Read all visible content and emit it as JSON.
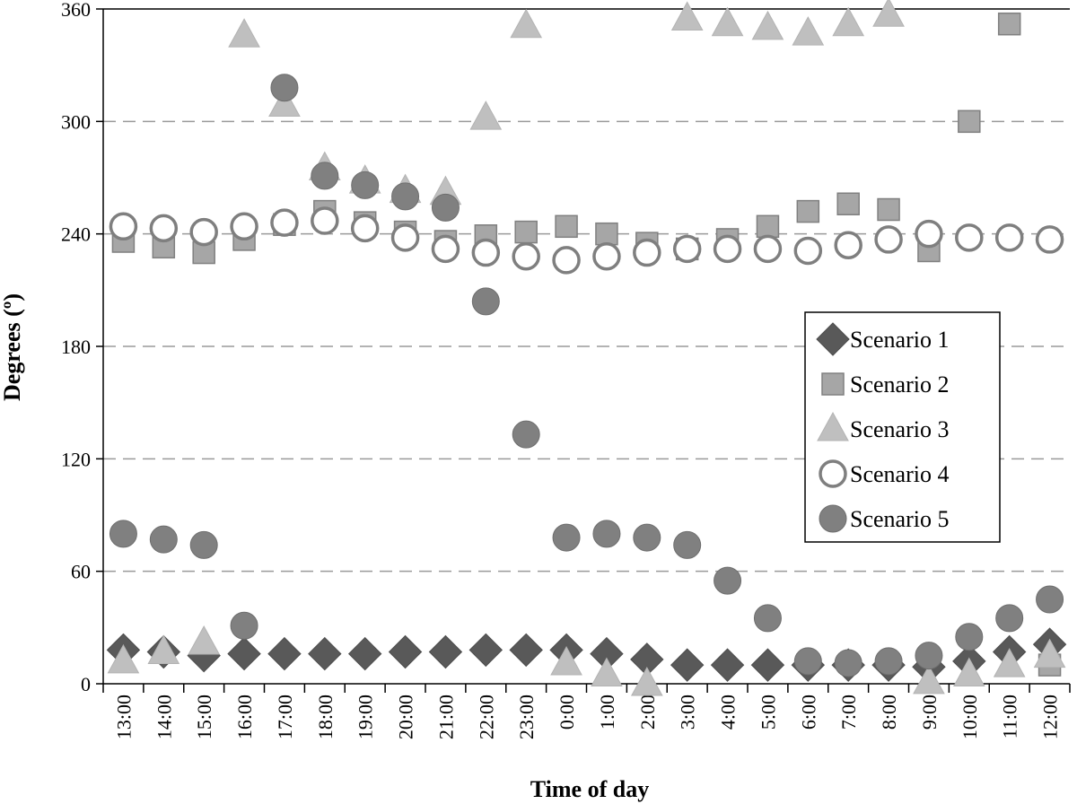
{
  "chart_data": {
    "type": "scatter",
    "title": "",
    "xlabel": "Time of day",
    "ylabel": "Degrees (º)",
    "ylim": [
      0,
      360
    ],
    "yticks": [
      0,
      60,
      120,
      180,
      240,
      300,
      360
    ],
    "grid": "horizontal dashed",
    "legend_position": "right",
    "categories": [
      "13:00",
      "14:00",
      "15:00",
      "16:00",
      "17:00",
      "18:00",
      "19:00",
      "20:00",
      "21:00",
      "22:00",
      "23:00",
      "0:00",
      "1:00",
      "2:00",
      "3:00",
      "4:00",
      "5:00",
      "6:00",
      "7:00",
      "8:00",
      "9:00",
      "10:00",
      "11:00",
      "12:00"
    ],
    "series": [
      {
        "name": "Scenario 1",
        "marker": "diamond",
        "color": "#595959",
        "values": [
          18,
          17,
          15,
          16,
          16,
          16,
          16,
          17,
          17,
          18,
          18,
          18,
          16,
          13,
          10,
          10,
          10,
          10,
          10,
          10,
          9,
          12,
          17,
          21
        ]
      },
      {
        "name": "Scenario 2",
        "marker": "square",
        "color": "#a6a6a6",
        "values": [
          236,
          233,
          230,
          237,
          245,
          252,
          246,
          241,
          236,
          239,
          241,
          244,
          240,
          235,
          232,
          237,
          244,
          252,
          256,
          253,
          231,
          300,
          352,
          10
        ]
      },
      {
        "name": "Scenario 3",
        "marker": "triangle",
        "color": "#bfbfbf",
        "values": [
          12,
          17,
          22,
          346,
          309,
          275,
          268,
          263,
          262,
          302,
          351,
          11,
          5,
          0,
          355,
          352,
          350,
          347,
          352,
          357,
          1,
          5,
          10,
          15
        ]
      },
      {
        "name": "Scenario 4",
        "marker": "open-circle",
        "color": "#7f7f7f",
        "values": [
          244,
          243,
          241,
          244,
          246,
          247,
          243,
          238,
          232,
          230,
          228,
          226,
          228,
          230,
          232,
          232,
          232,
          231,
          234,
          237,
          240,
          238,
          238,
          237
        ]
      },
      {
        "name": "Scenario 5",
        "marker": "filled-circle",
        "color": "#808080",
        "values": [
          80,
          77,
          74,
          31,
          318,
          271,
          266,
          260,
          254,
          204,
          133,
          78,
          80,
          78,
          74,
          55,
          35,
          12,
          11,
          12,
          15,
          25,
          35,
          45
        ]
      }
    ]
  }
}
